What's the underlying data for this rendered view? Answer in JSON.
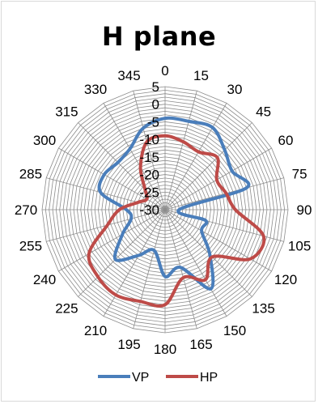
{
  "chart_data": {
    "type": "radar",
    "title": "H plane",
    "angle_labels": [
      "0",
      "15",
      "30",
      "45",
      "60",
      "75",
      "90",
      "105",
      "120",
      "135",
      "150",
      "165",
      "180",
      "195",
      "210",
      "225",
      "240",
      "255",
      "270",
      "285",
      "300",
      "315",
      "330",
      "345"
    ],
    "radial_labels": [
      "5",
      "0",
      "-5",
      "-10",
      "-15",
      "-20",
      "-25",
      "-30"
    ],
    "rlim": [
      -30,
      5
    ],
    "radial_step": 1,
    "grid": true,
    "legend_position": "bottom",
    "series": [
      {
        "name": "VP",
        "color": "#4a7ebb",
        "angles": [
          0,
          15,
          30,
          45,
          60,
          75,
          90,
          105,
          120,
          135,
          150,
          165,
          180,
          195,
          210,
          225,
          240,
          255,
          270,
          285,
          300,
          315,
          330,
          345
        ],
        "values": [
          -4,
          -4,
          -3,
          -6,
          -8,
          -6,
          -26,
          -18,
          -18,
          -12,
          -4,
          -13,
          -11,
          -18,
          -15,
          -10,
          -16,
          -20,
          -19,
          -11,
          -10,
          -11,
          -10,
          -6
        ]
      },
      {
        "name": "HP",
        "color": "#be4b48",
        "angles": [
          0,
          15,
          30,
          45,
          60,
          75,
          90,
          105,
          120,
          135,
          150,
          165,
          180,
          195,
          210,
          225,
          240,
          255,
          270,
          285,
          300,
          315,
          330,
          345
        ],
        "values": [
          -9,
          -10,
          -11,
          -9,
          -13,
          -12,
          -10,
          -1,
          -2,
          -11,
          -7,
          -10,
          -3,
          -3,
          -2,
          -3,
          -5,
          -13,
          -17,
          -22,
          -24,
          -22,
          -16,
          -10
        ]
      }
    ]
  }
}
